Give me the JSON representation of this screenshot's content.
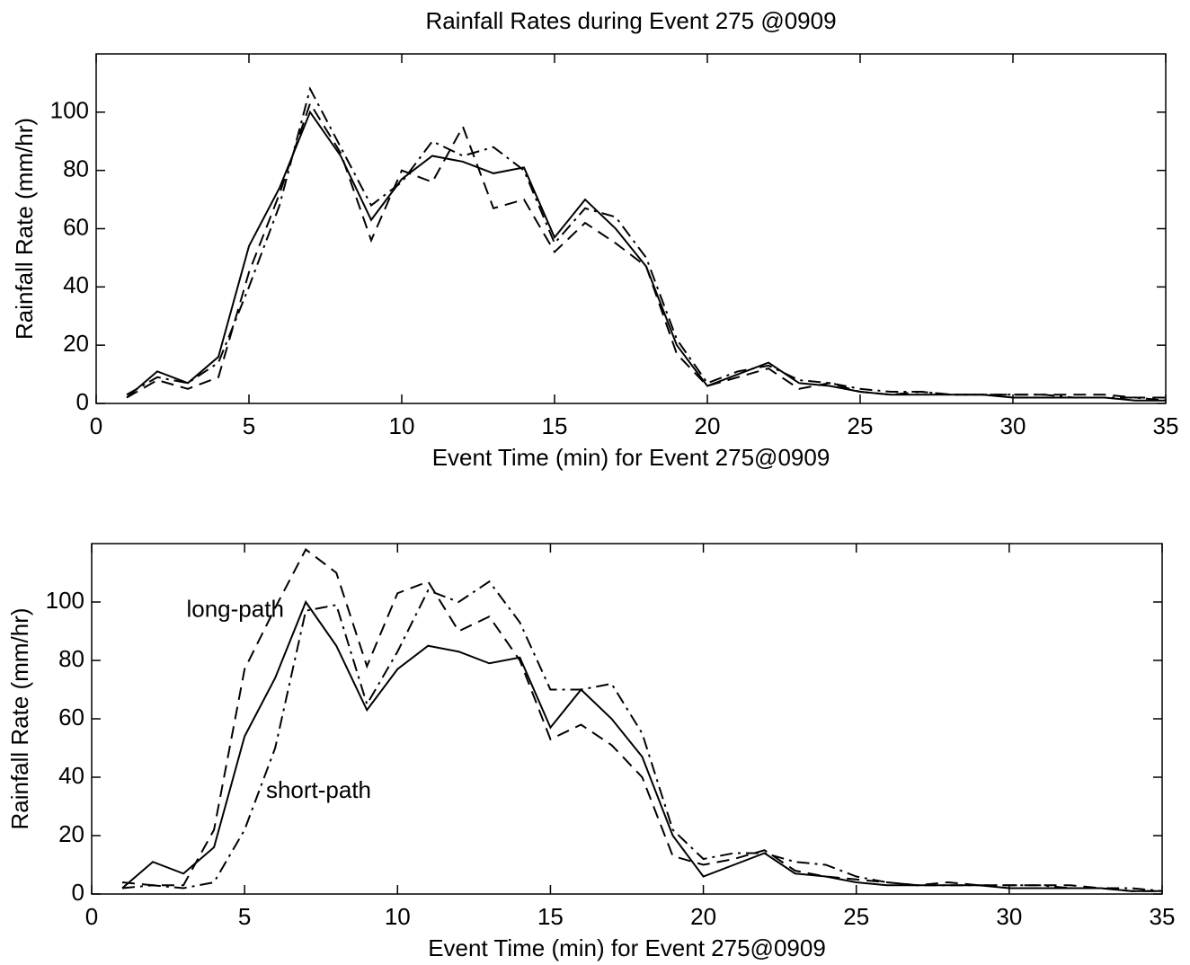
{
  "chart_data": [
    {
      "type": "line",
      "title": "Rainfall Rates during Event 275 @0909",
      "x_label": "Event Time (min) for Event 275@0909",
      "y_label": "Rainfall Rate (mm/hr)",
      "x": [
        1,
        2,
        3,
        4,
        5,
        6,
        7,
        8,
        9,
        10,
        11,
        12,
        13,
        14,
        15,
        16,
        17,
        18,
        19,
        20,
        21,
        22,
        23,
        24,
        25,
        26,
        27,
        28,
        29,
        30,
        31,
        32,
        33,
        34,
        35
      ],
      "series": [
        {
          "color": "#000000",
          "style": "solid",
          "values": [
            2,
            11,
            7,
            16,
            54,
            74,
            100,
            85,
            63,
            77,
            85,
            83,
            79,
            81,
            57,
            70,
            60,
            47,
            20,
            6,
            10,
            14,
            7,
            6,
            4,
            3,
            3,
            3,
            3,
            2,
            2,
            2,
            2,
            1,
            1
          ]
        },
        {
          "color": "#000000",
          "style": "dashed",
          "values": [
            2,
            8,
            5,
            9,
            45,
            72,
            103,
            86,
            56,
            80,
            76,
            95,
            67,
            70,
            52,
            62,
            55,
            47,
            17,
            6,
            9,
            12,
            5,
            7,
            4,
            3,
            4,
            3,
            3,
            3,
            3,
            3,
            3,
            2,
            2
          ]
        },
        {
          "color": "#000000",
          "style": "dashdot",
          "values": [
            3,
            9,
            7,
            14,
            40,
            68,
            108,
            88,
            68,
            76,
            90,
            85,
            88,
            80,
            55,
            67,
            64,
            50,
            22,
            7,
            11,
            13,
            8,
            7,
            5,
            4,
            4,
            3,
            3,
            3,
            3,
            2,
            2,
            2,
            1
          ]
        }
      ],
      "xlim": [
        0,
        35
      ],
      "xticks": [
        0,
        5,
        10,
        15,
        20,
        25,
        30,
        35
      ],
      "ylim": [
        0,
        120
      ],
      "yticks": [
        0,
        20,
        40,
        60,
        80,
        100
      ],
      "grid": false
    },
    {
      "type": "line",
      "x_label": "Event Time (min) for Event 275@0909",
      "y_label": "Rainfall Rate (mm/hr)",
      "x": [
        1,
        2,
        3,
        4,
        5,
        6,
        7,
        8,
        9,
        10,
        11,
        12,
        13,
        14,
        15,
        16,
        17,
        18,
        19,
        20,
        21,
        22,
        23,
        24,
        25,
        26,
        27,
        28,
        29,
        30,
        31,
        32,
        33,
        34,
        35
      ],
      "series": [
        {
          "color": "#000000",
          "style": "solid",
          "values": [
            2,
            11,
            7,
            16,
            54,
            74,
            100,
            85,
            63,
            77,
            85,
            83,
            79,
            81,
            57,
            70,
            60,
            47,
            20,
            6,
            10,
            14,
            7,
            6,
            4,
            3,
            3,
            3,
            3,
            2,
            2,
            2,
            2,
            1,
            1
          ]
        },
        {
          "color": "#000000",
          "style": "dashed",
          "values": [
            4,
            3,
            3,
            22,
            77,
            98,
            118,
            110,
            78,
            103,
            107,
            90,
            95,
            80,
            53,
            58,
            51,
            40,
            13,
            10,
            12,
            15,
            8,
            6,
            5,
            4,
            3,
            4,
            3,
            3,
            3,
            3,
            2,
            1,
            1
          ]
        },
        {
          "color": "#000000",
          "style": "dashdot",
          "values": [
            2,
            3,
            2,
            4,
            22,
            50,
            97,
            99,
            65,
            83,
            104,
            100,
            107,
            93,
            70,
            70,
            72,
            55,
            22,
            12,
            14,
            14,
            11,
            10,
            6,
            4,
            3,
            3,
            3,
            3,
            3,
            2,
            2,
            2,
            1
          ]
        }
      ],
      "annotations": [
        {
          "text": "long-path",
          "x": 3.1,
          "y": 97
        },
        {
          "text": "short-path",
          "x": 5.7,
          "y": 35
        }
      ],
      "xlim": [
        0,
        35
      ],
      "xticks": [
        0,
        5,
        10,
        15,
        20,
        25,
        30,
        35
      ],
      "ylim": [
        0,
        120
      ],
      "yticks": [
        0,
        20,
        40,
        60,
        80,
        100
      ],
      "grid": false
    }
  ]
}
